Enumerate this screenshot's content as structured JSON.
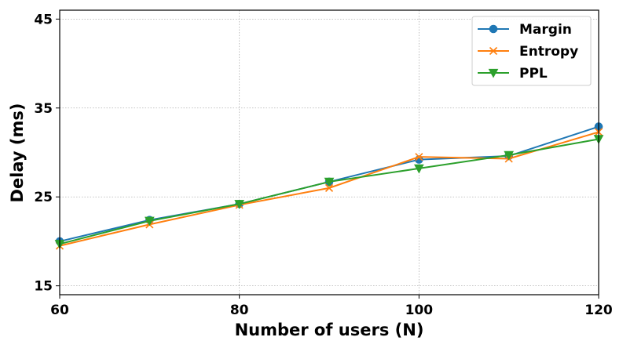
{
  "chart_data": {
    "type": "line",
    "title": "",
    "xlabel": "Number of users (N)",
    "ylabel": "Delay (ms)",
    "x": [
      60,
      70,
      80,
      90,
      100,
      110,
      120
    ],
    "xlim": [
      60,
      120
    ],
    "ylim": [
      14,
      46
    ],
    "xticks": [
      60,
      80,
      100,
      120
    ],
    "yticks": [
      15,
      25,
      35,
      45
    ],
    "grid": true,
    "legend_position": "top-right",
    "series": [
      {
        "name": "Margin",
        "color": "#1f77b4",
        "marker": "circle",
        "values": [
          20.0,
          22.4,
          24.2,
          26.7,
          29.2,
          29.6,
          32.9
        ]
      },
      {
        "name": "Entropy",
        "color": "#ff7f0e",
        "marker": "x",
        "values": [
          19.5,
          21.9,
          24.1,
          26.0,
          29.5,
          29.3,
          32.3
        ]
      },
      {
        "name": "PPL",
        "color": "#2ca02c",
        "marker": "triangle-down",
        "values": [
          19.7,
          22.3,
          24.2,
          26.7,
          28.2,
          29.7,
          31.5
        ]
      }
    ]
  }
}
